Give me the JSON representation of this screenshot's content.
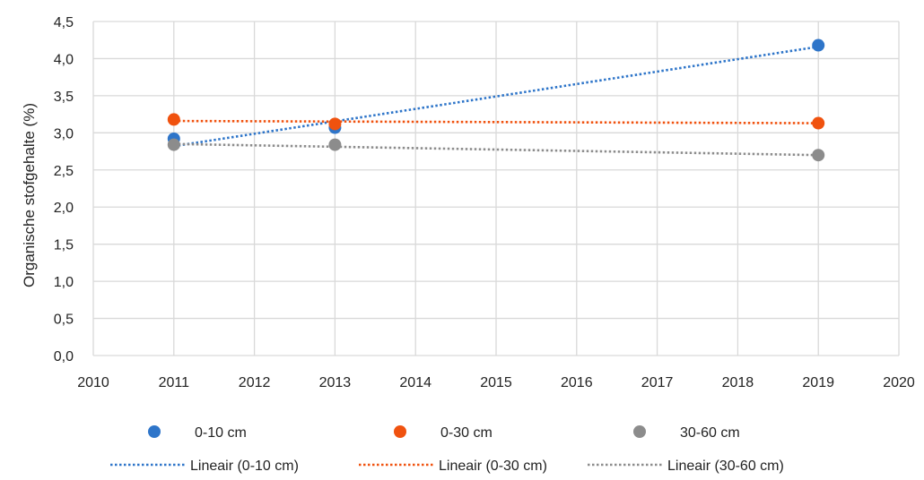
{
  "chart_data": {
    "type": "scatter",
    "title": "",
    "xlabel": "",
    "ylabel": "Organische stofgehalte (%)",
    "xlim": [
      2010,
      2020
    ],
    "ylim": [
      0,
      4.5
    ],
    "x_ticks": [
      2010,
      2011,
      2012,
      2013,
      2014,
      2015,
      2016,
      2017,
      2018,
      2019,
      2020
    ],
    "y_ticks": [
      "0,0",
      "0,5",
      "1,0",
      "1,5",
      "2,0",
      "2,5",
      "3,0",
      "3,5",
      "4,0",
      "4,5"
    ],
    "grid": true,
    "legend_position": "bottom",
    "series": [
      {
        "name": "0-10 cm",
        "color": "#2E75C9",
        "x": [
          2011,
          2013,
          2019
        ],
        "y": [
          2.92,
          3.07,
          4.18
        ],
        "trend": [
          2.82,
          4.16
        ],
        "trend_label": "Lineair (0-10 cm)"
      },
      {
        "name": "0-30 cm",
        "color": "#F0520F",
        "x": [
          2011,
          2013,
          2019
        ],
        "y": [
          3.18,
          3.12,
          3.13
        ],
        "trend": [
          3.16,
          3.13
        ],
        "trend_label": "Lineair (0-30 cm)"
      },
      {
        "name": "30-60 cm",
        "color": "#8C8C8C",
        "x": [
          2011,
          2013,
          2019
        ],
        "y": [
          2.84,
          2.84,
          2.7
        ],
        "trend": [
          2.85,
          2.7
        ],
        "trend_label": "Lineair (30-60 cm)"
      }
    ]
  }
}
